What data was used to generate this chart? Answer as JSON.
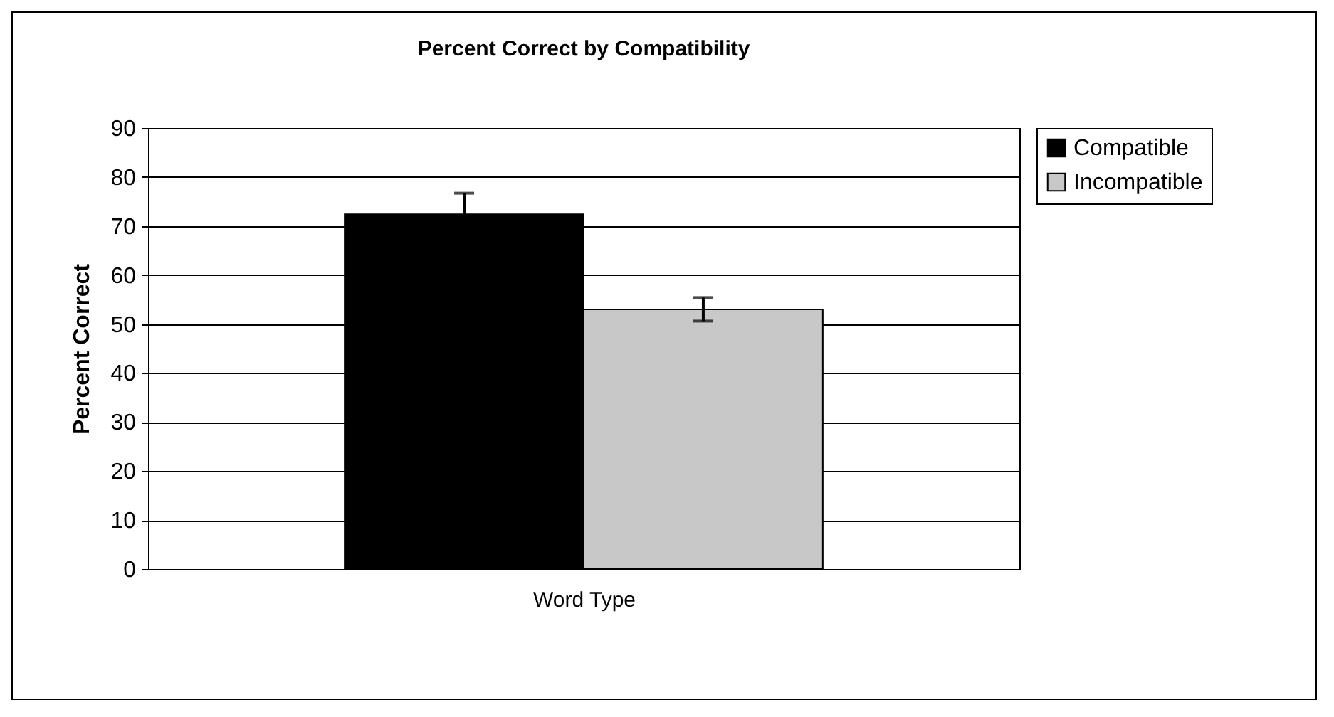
{
  "chart_data": {
    "type": "bar",
    "title": "Percent Correct by Compatibility",
    "xlabel": "Word Type",
    "ylabel": "Percent Correct",
    "categories": [
      null
    ],
    "series": [
      {
        "name": "Compatible",
        "color": "#000000",
        "values": [
          72.4
        ],
        "errors": [
          4.3
        ]
      },
      {
        "name": "Incompatible",
        "color": "#c8c8c8",
        "values": [
          53
        ],
        "errors": [
          2.4
        ]
      }
    ],
    "ylim": [
      0,
      90
    ],
    "yticks": [
      0,
      10,
      20,
      30,
      40,
      50,
      60,
      70,
      80,
      90
    ],
    "grid": "y",
    "legend": "right"
  }
}
